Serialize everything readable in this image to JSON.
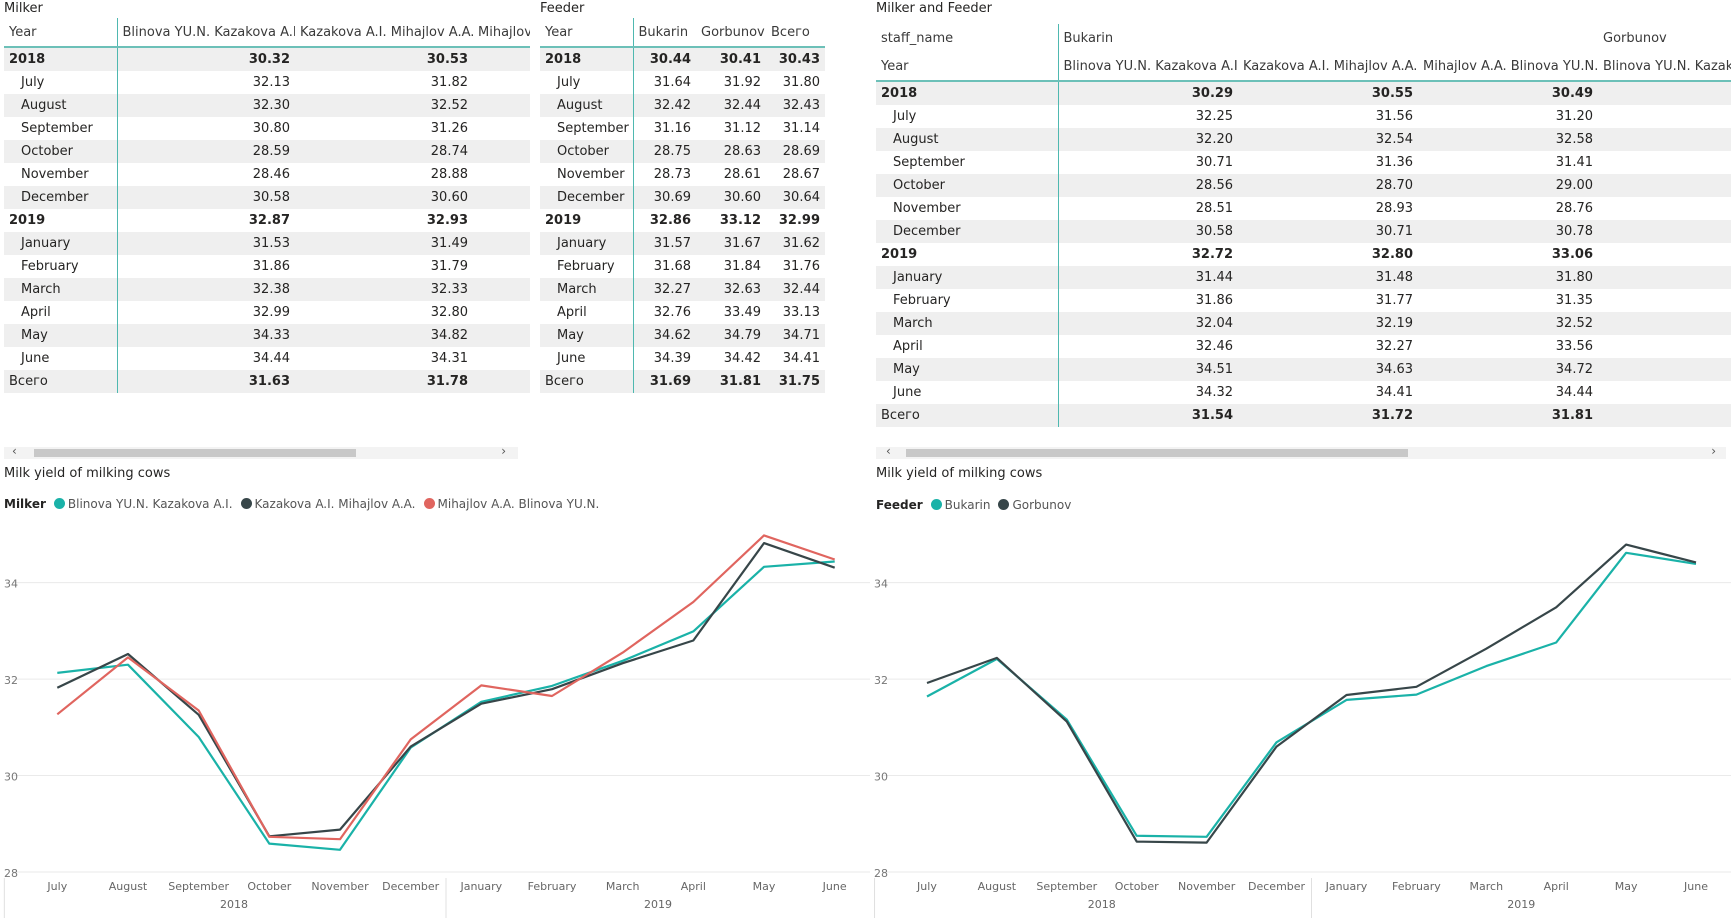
{
  "milker_table": {
    "title": "Milker",
    "header": [
      "Year",
      "Blinova YU.N. Kazakova A.I.",
      "Kazakova A.I. Mihajlov A.A.",
      "Mihajlov"
    ],
    "rows": [
      {
        "label": "2018",
        "type": "year",
        "v": [
          "30.32",
          "30.53"
        ]
      },
      {
        "label": "July",
        "type": "month",
        "v": [
          "32.13",
          "31.82"
        ]
      },
      {
        "label": "August",
        "type": "month",
        "v": [
          "32.30",
          "32.52"
        ]
      },
      {
        "label": "September",
        "type": "month",
        "v": [
          "30.80",
          "31.26"
        ]
      },
      {
        "label": "October",
        "type": "month",
        "v": [
          "28.59",
          "28.74"
        ]
      },
      {
        "label": "November",
        "type": "month",
        "v": [
          "28.46",
          "28.88"
        ]
      },
      {
        "label": "December",
        "type": "month",
        "v": [
          "30.58",
          "30.60"
        ]
      },
      {
        "label": "2019",
        "type": "year",
        "v": [
          "32.87",
          "32.93"
        ]
      },
      {
        "label": "January",
        "type": "month",
        "v": [
          "31.53",
          "31.49"
        ]
      },
      {
        "label": "February",
        "type": "month",
        "v": [
          "31.86",
          "31.79"
        ]
      },
      {
        "label": "March",
        "type": "month",
        "v": [
          "32.38",
          "32.33"
        ]
      },
      {
        "label": "April",
        "type": "month",
        "v": [
          "32.99",
          "32.80"
        ]
      },
      {
        "label": "May",
        "type": "month",
        "v": [
          "34.33",
          "34.82"
        ]
      },
      {
        "label": "June",
        "type": "month",
        "v": [
          "34.44",
          "34.31"
        ]
      },
      {
        "label": "Всего",
        "type": "total",
        "v": [
          "31.63",
          "31.78"
        ]
      }
    ]
  },
  "feeder_table": {
    "title": "Feeder",
    "header": [
      "Year",
      "Bukarin",
      "Gorbunov",
      "Всего"
    ],
    "rows": [
      {
        "label": "2018",
        "type": "year",
        "v": [
          "30.44",
          "30.41",
          "30.43"
        ]
      },
      {
        "label": "July",
        "type": "month",
        "v": [
          "31.64",
          "31.92",
          "31.80"
        ]
      },
      {
        "label": "August",
        "type": "month",
        "v": [
          "32.42",
          "32.44",
          "32.43"
        ]
      },
      {
        "label": "September",
        "type": "month",
        "v": [
          "31.16",
          "31.12",
          "31.14"
        ]
      },
      {
        "label": "October",
        "type": "month",
        "v": [
          "28.75",
          "28.63",
          "28.69"
        ]
      },
      {
        "label": "November",
        "type": "month",
        "v": [
          "28.73",
          "28.61",
          "28.67"
        ]
      },
      {
        "label": "December",
        "type": "month",
        "v": [
          "30.69",
          "30.60",
          "30.64"
        ]
      },
      {
        "label": "2019",
        "type": "year",
        "v": [
          "32.86",
          "33.12",
          "32.99"
        ]
      },
      {
        "label": "January",
        "type": "month",
        "v": [
          "31.57",
          "31.67",
          "31.62"
        ]
      },
      {
        "label": "February",
        "type": "month",
        "v": [
          "31.68",
          "31.84",
          "31.76"
        ]
      },
      {
        "label": "March",
        "type": "month",
        "v": [
          "32.27",
          "32.63",
          "32.44"
        ]
      },
      {
        "label": "April",
        "type": "month",
        "v": [
          "32.76",
          "33.49",
          "33.13"
        ]
      },
      {
        "label": "May",
        "type": "month",
        "v": [
          "34.62",
          "34.79",
          "34.71"
        ]
      },
      {
        "label": "June",
        "type": "month",
        "v": [
          "34.39",
          "34.42",
          "34.41"
        ]
      },
      {
        "label": "Всего",
        "type": "total",
        "v": [
          "31.69",
          "31.81",
          "31.75"
        ]
      }
    ]
  },
  "mf_table": {
    "title": "Milker and Feeder",
    "header_row1": [
      "staff_name",
      "Bukarin",
      "",
      "",
      "Gorbunov"
    ],
    "header_row2": [
      "Year",
      "Blinova YU.N. Kazakova A.I.",
      "Kazakova A.I. Mihajlov A.A.",
      "Mihajlov A.A. Blinova YU.N.",
      "Blinova YU.N. Kazako"
    ],
    "rows": [
      {
        "label": "2018",
        "type": "year",
        "v": [
          "30.29",
          "30.55",
          "30.49"
        ]
      },
      {
        "label": "July",
        "type": "month",
        "v": [
          "32.25",
          "31.56",
          "31.20"
        ]
      },
      {
        "label": "August",
        "type": "month",
        "v": [
          "32.20",
          "32.54",
          "32.58"
        ]
      },
      {
        "label": "September",
        "type": "month",
        "v": [
          "30.71",
          "31.36",
          "31.41"
        ]
      },
      {
        "label": "October",
        "type": "month",
        "v": [
          "28.56",
          "28.70",
          "29.00"
        ]
      },
      {
        "label": "November",
        "type": "month",
        "v": [
          "28.51",
          "28.93",
          "28.76"
        ]
      },
      {
        "label": "December",
        "type": "month",
        "v": [
          "30.58",
          "30.71",
          "30.78"
        ]
      },
      {
        "label": "2019",
        "type": "year",
        "v": [
          "32.72",
          "32.80",
          "33.06"
        ]
      },
      {
        "label": "January",
        "type": "month",
        "v": [
          "31.44",
          "31.48",
          "31.80"
        ]
      },
      {
        "label": "February",
        "type": "month",
        "v": [
          "31.86",
          "31.77",
          "31.35"
        ]
      },
      {
        "label": "March",
        "type": "month",
        "v": [
          "32.04",
          "32.19",
          "32.52"
        ]
      },
      {
        "label": "April",
        "type": "month",
        "v": [
          "32.46",
          "32.27",
          "33.56"
        ]
      },
      {
        "label": "May",
        "type": "month",
        "v": [
          "34.51",
          "34.63",
          "34.72"
        ]
      },
      {
        "label": "June",
        "type": "month",
        "v": [
          "34.32",
          "34.41",
          "34.44"
        ]
      },
      {
        "label": "Всего",
        "type": "total",
        "v": [
          "31.54",
          "31.72",
          "31.81"
        ]
      }
    ]
  },
  "chart_data": [
    {
      "type": "line",
      "title": "Milk yield of milking cows",
      "legend_title": "Milker",
      "legend_position": "top-left",
      "grid": true,
      "categories": [
        "July",
        "August",
        "September",
        "October",
        "November",
        "December",
        "January",
        "February",
        "March",
        "April",
        "May",
        "June"
      ],
      "groups": [
        {
          "label": "2018",
          "from": 0,
          "to": 5
        },
        {
          "label": "2019",
          "from": 6,
          "to": 11
        }
      ],
      "yticks": [
        28,
        30,
        32,
        34
      ],
      "ylim": [
        28,
        35.3
      ],
      "series": [
        {
          "name": "Blinova YU.N. Kazakova A.I.",
          "color": "#1ab2a8",
          "values": [
            32.13,
            32.3,
            30.8,
            28.59,
            28.46,
            30.58,
            31.53,
            31.86,
            32.38,
            32.99,
            34.33,
            34.44
          ]
        },
        {
          "name": "Kazakova A.I. Mihajlov A.A.",
          "color": "#374649",
          "values": [
            31.82,
            32.52,
            31.26,
            28.74,
            28.88,
            30.6,
            31.49,
            31.79,
            32.33,
            32.8,
            34.82,
            34.31
          ]
        },
        {
          "name": "Mihajlov A.A. Blinova YU.N.",
          "color": "#e0655f",
          "values": [
            31.27,
            32.45,
            31.35,
            28.73,
            28.68,
            30.75,
            31.87,
            31.65,
            32.55,
            33.6,
            34.98,
            34.48
          ]
        }
      ]
    },
    {
      "type": "line",
      "title": "Milk yield of milking cows",
      "legend_title": "Feeder",
      "legend_position": "top-left",
      "grid": true,
      "categories": [
        "July",
        "August",
        "September",
        "October",
        "November",
        "December",
        "January",
        "February",
        "March",
        "April",
        "May",
        "June"
      ],
      "groups": [
        {
          "label": "2018",
          "from": 0,
          "to": 5
        },
        {
          "label": "2019",
          "from": 6,
          "to": 11
        }
      ],
      "yticks": [
        28,
        30,
        32,
        34
      ],
      "ylim": [
        28,
        35.3
      ],
      "series": [
        {
          "name": "Bukarin",
          "color": "#1ab2a8",
          "values": [
            31.64,
            32.42,
            31.16,
            28.75,
            28.73,
            30.69,
            31.57,
            31.68,
            32.27,
            32.76,
            34.62,
            34.39
          ]
        },
        {
          "name": "Gorbunov",
          "color": "#374649",
          "values": [
            31.92,
            32.44,
            31.12,
            28.63,
            28.61,
            30.6,
            31.67,
            31.84,
            32.63,
            33.49,
            34.79,
            34.42
          ]
        }
      ]
    }
  ]
}
